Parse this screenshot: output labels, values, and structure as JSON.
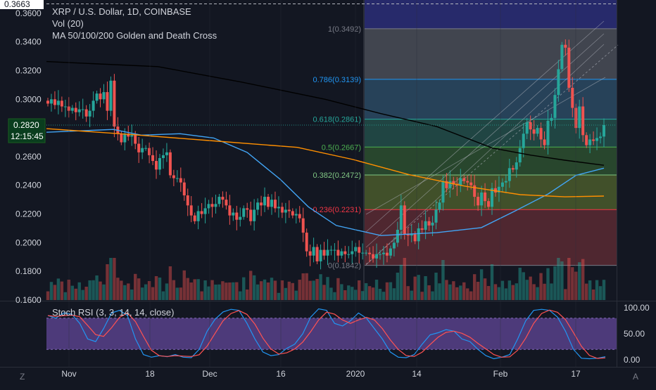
{
  "header": {
    "symbol_line": "XRP / U.S. Dollar, 1D, COINBASE",
    "indicators": [
      "Vol (20)",
      "MA 50/100/200 Golden and Death Cross"
    ]
  },
  "price_axis": {
    "top_label": "0.3663",
    "ticks": [
      "0.3600",
      "0.3400",
      "0.3200",
      "0.3000",
      "0.2800",
      "0.2600",
      "0.2400",
      "0.2200",
      "0.2000",
      "0.1800",
      "0.1600"
    ],
    "current_price": "0.2820",
    "countdown": "12:15:45",
    "range": [
      0.16,
      0.3663
    ]
  },
  "time_axis": {
    "labels": [
      "Nov",
      "18",
      "Dec",
      "16",
      "2020",
      "14",
      "Feb",
      "17"
    ]
  },
  "fib_levels": [
    {
      "label": "1(0.3492)",
      "value": 0.3492,
      "color": "#787b86",
      "fill": "#4a4d57"
    },
    {
      "label": "0.786(0.3139)",
      "value": 0.3139,
      "color": "#2196f3",
      "fill": "#2c4a63"
    },
    {
      "label": "0.618(0.2861)",
      "value": 0.2861,
      "color": "#26a69a",
      "fill": "#234d49"
    },
    {
      "label": "0.5(0.2667)",
      "value": 0.2667,
      "color": "#4caf50",
      "fill": "#2d4f2f"
    },
    {
      "label": "0.382(0.2472)",
      "value": 0.2472,
      "color": "#81c784",
      "fill": "#4a5a2c"
    },
    {
      "label": "0.236(0.2231)",
      "value": 0.2231,
      "color": "#f23645",
      "fill": "#5a2a33"
    },
    {
      "label": "0(0.1842)",
      "value": 0.1842,
      "color": "#787b86",
      "fill": null
    }
  ],
  "stoch": {
    "title": "Stoch RSI (3, 3, 14, 14, close)",
    "ticks": [
      "100.00",
      "50.00",
      "0.00"
    ],
    "band": [
      20,
      80
    ]
  },
  "corner_labels": {
    "left": "Z",
    "right": "A"
  },
  "colors": {
    "background": "#131722",
    "up": "#26a69a",
    "down": "#ef5350",
    "ma50": "#42a5f5",
    "ma100": "#ff8f00",
    "ma200": "#000000",
    "stoch_k": "#2196f3",
    "stoch_d": "#ff5252",
    "stoch_band": "#7e57c2"
  },
  "chart_data": {
    "type": "line",
    "title": "XRP / U.S. Dollar, 1D, COINBASE",
    "x_labels": [
      "Nov",
      "18",
      "Dec",
      "16",
      "2020",
      "14",
      "Feb",
      "17"
    ],
    "ylim": [
      0.16,
      0.3663
    ],
    "series": [
      {
        "name": "XRP / U.S. Dollar, 1D, COINBASE",
        "kind": "candles",
        "approx_close": [
          0.297,
          0.3,
          0.296,
          0.299,
          0.295,
          0.295,
          0.292,
          0.294,
          0.291,
          0.293,
          0.293,
          0.288,
          0.292,
          0.299,
          0.304,
          0.3,
          0.305,
          0.292,
          0.313,
          0.281,
          0.276,
          0.27,
          0.276,
          0.274,
          0.275,
          0.269,
          0.263,
          0.266,
          0.266,
          0.261,
          0.257,
          0.251,
          0.259,
          0.261,
          0.263,
          0.247,
          0.245,
          0.245,
          0.242,
          0.233,
          0.226,
          0.219,
          0.215,
          0.222,
          0.22,
          0.224,
          0.227,
          0.225,
          0.227,
          0.232,
          0.23,
          0.226,
          0.219,
          0.221,
          0.216,
          0.218,
          0.224,
          0.223,
          0.215,
          0.223,
          0.228,
          0.226,
          0.232,
          0.225,
          0.23,
          0.224,
          0.225,
          0.221,
          0.223,
          0.222,
          0.219,
          0.22,
          0.217,
          0.207,
          0.194,
          0.191,
          0.197,
          0.187,
          0.195,
          0.191,
          0.195,
          0.195,
          0.195,
          0.191,
          0.194,
          0.192,
          0.192,
          0.194,
          0.197,
          0.193,
          0.193,
          0.193,
          0.192,
          0.189,
          0.192,
          0.192,
          0.193,
          0.191,
          0.196,
          0.2,
          0.209,
          0.226,
          0.206,
          0.205,
          0.206,
          0.201,
          0.21,
          0.209,
          0.215,
          0.212,
          0.214,
          0.223,
          0.228,
          0.243,
          0.238,
          0.243,
          0.241,
          0.24,
          0.245,
          0.243,
          0.242,
          0.24,
          0.232,
          0.226,
          0.235,
          0.229,
          0.225,
          0.238,
          0.235,
          0.239,
          0.242,
          0.243,
          0.252,
          0.251,
          0.256,
          0.266,
          0.276,
          0.284,
          0.279,
          0.276,
          0.28,
          0.272,
          0.268,
          0.285,
          0.287,
          0.303,
          0.321,
          0.338,
          0.336,
          0.308,
          0.294,
          0.28,
          0.295,
          0.275,
          0.268,
          0.272,
          0.271,
          0.273,
          0.274,
          0.282
        ]
      },
      {
        "name": "MA 50",
        "approx": [
          [
            0,
            0.277
          ],
          [
            0.12,
            0.279
          ],
          [
            0.17,
            0.275
          ],
          [
            0.24,
            0.276
          ],
          [
            0.3,
            0.273
          ],
          [
            0.36,
            0.263
          ],
          [
            0.42,
            0.244
          ],
          [
            0.47,
            0.225
          ],
          [
            0.52,
            0.212
          ],
          [
            0.6,
            0.205
          ],
          [
            0.7,
            0.207
          ],
          [
            0.78,
            0.2105
          ],
          [
            0.84,
            0.222
          ],
          [
            0.9,
            0.234
          ],
          [
            0.95,
            0.247
          ],
          [
            1,
            0.252
          ]
        ]
      },
      {
        "name": "MA 100",
        "approx": [
          [
            0,
            0.2795
          ],
          [
            0.15,
            0.2755
          ],
          [
            0.3,
            0.271
          ],
          [
            0.45,
            0.2665
          ],
          [
            0.55,
            0.258
          ],
          [
            0.65,
            0.2475
          ],
          [
            0.75,
            0.2395
          ],
          [
            0.85,
            0.2335
          ],
          [
            0.93,
            0.232
          ],
          [
            1,
            0.2325
          ]
        ]
      },
      {
        "name": "MA 200",
        "approx": [
          [
            0,
            0.3263
          ],
          [
            0.2,
            0.3228
          ],
          [
            0.35,
            0.312
          ],
          [
            0.5,
            0.3
          ],
          [
            0.6,
            0.29
          ],
          [
            0.7,
            0.281
          ],
          [
            0.8,
            0.266
          ],
          [
            0.87,
            0.261
          ],
          [
            0.93,
            0.2575
          ],
          [
            1,
            0.254
          ]
        ]
      }
    ],
    "annotations": [
      "1(0.3492)",
      "0.786(0.3139)",
      "0.618(0.2861)",
      "0.5(0.2667)",
      "0.382(0.2472)",
      "0.236(0.2231)",
      "0(0.1842)"
    ]
  }
}
